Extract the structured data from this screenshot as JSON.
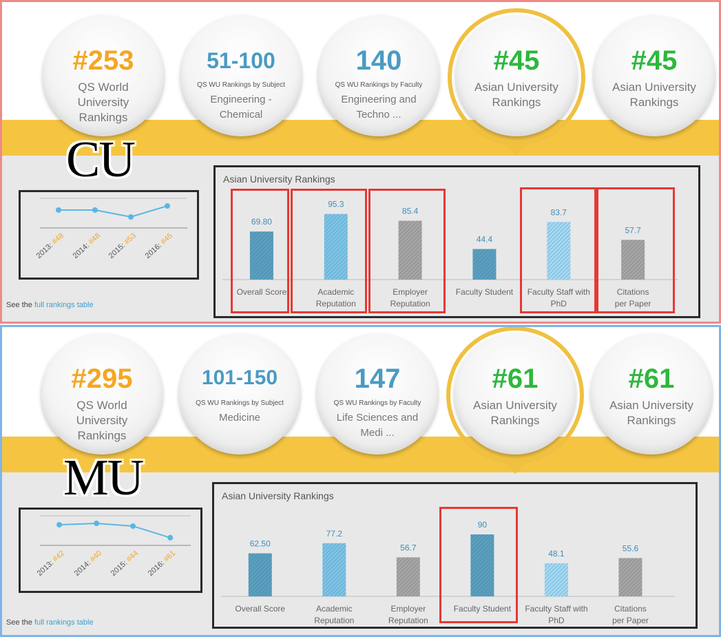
{
  "panels": [
    {
      "id": "cu",
      "logo": "CU",
      "circles": [
        {
          "big": "#253",
          "color": "#f5a623",
          "small": "",
          "label": "QS World University Rankings"
        },
        {
          "big": "51-100",
          "color": "#4a9bc4",
          "small": "QS WU Rankings by Subject",
          "label": "Engineering - Chemical"
        },
        {
          "big": "140",
          "color": "#4a9bc4",
          "small": "QS WU Rankings by Faculty",
          "label": "Engineering and Techno ..."
        },
        {
          "big": "#45",
          "color": "#2db83d",
          "small": "",
          "label": "Asian University Rankings",
          "selected": true
        },
        {
          "big": "#45",
          "color": "#2db83d",
          "small": "",
          "label": "Asian University Rankings"
        }
      ],
      "mini_chart": {
        "type": "line",
        "x": [
          "2013",
          "2014",
          "2015",
          "2016"
        ],
        "ranks": [
          48,
          48,
          53,
          45
        ],
        "tick_labels": [
          {
            "year": "2013:",
            "rank": "#48"
          },
          {
            "year": "2014:",
            "rank": "#48"
          },
          {
            "year": "2015:",
            "rank": "#53"
          },
          {
            "year": "2016:",
            "rank": "#45"
          }
        ]
      },
      "see_text": "See the",
      "see_link": "full rankings table",
      "bar_chart": {
        "type": "bar",
        "title": "Asian University Rankings",
        "categories": [
          "Overall Score",
          "Academic Reputation",
          "Employer Reputation",
          "Faculty Student",
          "Faculty Staff with PhD",
          "Citations per Paper"
        ],
        "value_labels": [
          "69.80",
          "95.3",
          "85.4",
          "44.4",
          "83.7",
          "57.7"
        ],
        "values": [
          69.8,
          95.3,
          85.4,
          44.4,
          83.7,
          57.7
        ],
        "ylim": [
          0,
          100
        ],
        "highlighted": [
          0,
          1,
          2,
          4,
          5
        ]
      }
    },
    {
      "id": "mu",
      "logo": "MU",
      "circles": [
        {
          "big": "#295",
          "color": "#f5a623",
          "small": "",
          "label": "QS World University Rankings"
        },
        {
          "big": "101-150",
          "color": "#4a9bc4",
          "small": "QS WU Rankings by Subject",
          "label": "Medicine"
        },
        {
          "big": "147",
          "color": "#4a9bc4",
          "small": "QS WU Rankings by Faculty",
          "label": "Life Sciences and Medi ..."
        },
        {
          "big": "#61",
          "color": "#2db83d",
          "small": "",
          "label": "Asian University Rankings",
          "selected": true
        },
        {
          "big": "#61",
          "color": "#2db83d",
          "small": "",
          "label": "Asian University Rankings"
        }
      ],
      "mini_chart": {
        "type": "line",
        "x": [
          "2013",
          "2014",
          "2015",
          "2016"
        ],
        "ranks": [
          42,
          40,
          44,
          61
        ],
        "tick_labels": [
          {
            "year": "2013:",
            "rank": "#42"
          },
          {
            "year": "2014:",
            "rank": "#40"
          },
          {
            "year": "2015:",
            "rank": "#44"
          },
          {
            "year": "2016:",
            "rank": "#61"
          }
        ]
      },
      "see_text": "See the",
      "see_link": "full rankings table",
      "bar_chart": {
        "type": "bar",
        "title": "Asian University Rankings",
        "categories": [
          "Overall Score",
          "Academic Reputation",
          "Employer Reputation",
          "Faculty Student",
          "Faculty Staff with PhD",
          "Citations per Paper"
        ],
        "value_labels": [
          "62.50",
          "77.2",
          "56.7",
          "90",
          "48.1",
          "55.6"
        ],
        "values": [
          62.5,
          77.2,
          56.7,
          90,
          48.1,
          55.6
        ],
        "ylim": [
          0,
          100
        ],
        "highlighted": [
          3
        ]
      }
    }
  ],
  "chart_data": [
    {
      "type": "bar",
      "title": "Asian University Rankings",
      "categories": [
        "Overall Score",
        "Academic Reputation",
        "Employer Reputation",
        "Faculty Student",
        "Faculty Staff with PhD",
        "Citations per Paper"
      ],
      "values": [
        69.8,
        95.3,
        85.4,
        44.4,
        83.7,
        57.7
      ],
      "ylim": [
        0,
        100
      ]
    },
    {
      "type": "line",
      "x": [
        "2013",
        "2014",
        "2015",
        "2016"
      ],
      "values": [
        48,
        48,
        53,
        45
      ]
    },
    {
      "type": "bar",
      "title": "Asian University Rankings",
      "categories": [
        "Overall Score",
        "Academic Reputation",
        "Employer Reputation",
        "Faculty Student",
        "Faculty Staff with PhD",
        "Citations per Paper"
      ],
      "values": [
        62.5,
        77.2,
        56.7,
        90,
        48.1,
        55.6
      ],
      "ylim": [
        0,
        100
      ]
    },
    {
      "type": "line",
      "x": [
        "2013",
        "2014",
        "2015",
        "2016"
      ],
      "values": [
        42,
        40,
        44,
        61
      ]
    }
  ],
  "colors": {
    "orange": "#f5a623",
    "blue": "#4a9bc4",
    "green": "#2db83d",
    "gold_band": "#f5c542",
    "bar_dark": "#5b9fbf",
    "bar_light": "#6fb8dc",
    "bar_grey": "#9a9a9a",
    "highlight_red": "#e53935",
    "cu_border": "#ef8a8a",
    "mu_border": "#7fb4e6"
  }
}
